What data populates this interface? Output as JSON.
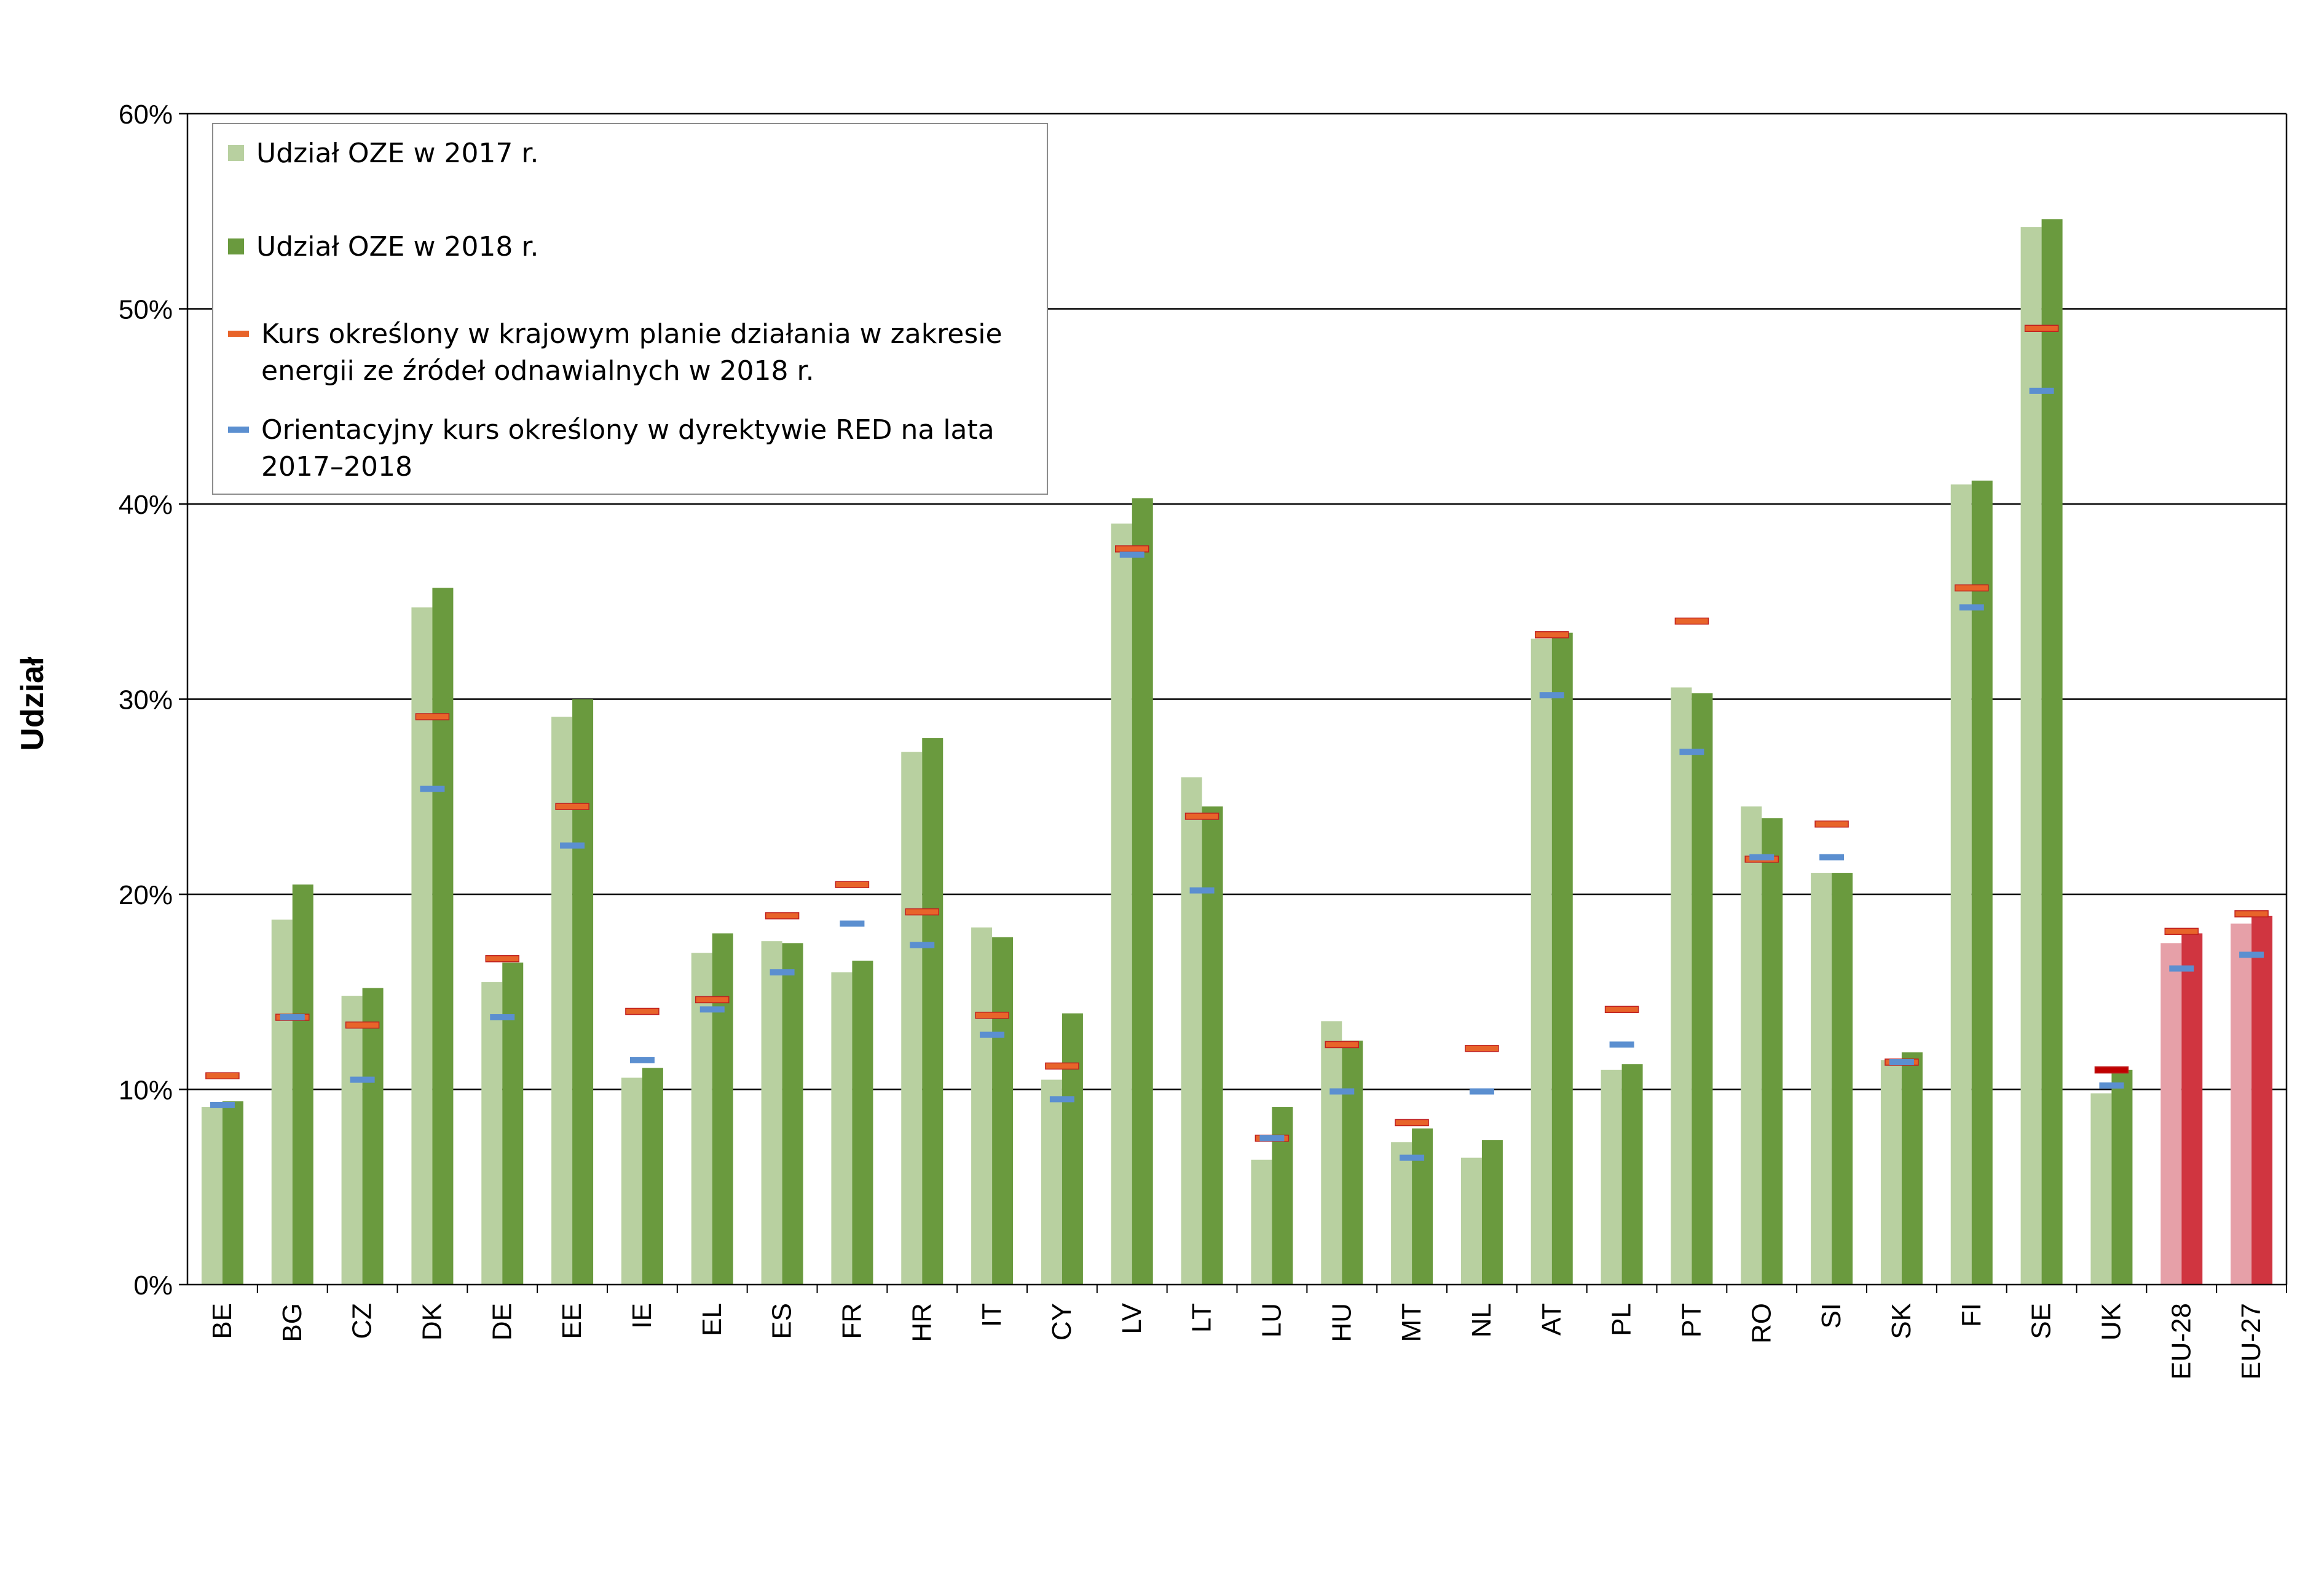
{
  "chart_data": {
    "type": "bar",
    "ylabel": "Udział",
    "ylim": [
      0,
      60
    ],
    "yticks": [
      "0%",
      "10%",
      "20%",
      "30%",
      "40%",
      "50%",
      "60%"
    ],
    "grid": true,
    "legend_position": "top-left",
    "categories": [
      "BE",
      "BG",
      "CZ",
      "DK",
      "DE",
      "EE",
      "IE",
      "EL",
      "ES",
      "FR",
      "HR",
      "IT",
      "CY",
      "LV",
      "LT",
      "LU",
      "HU",
      "MT",
      "NL",
      "AT",
      "PL",
      "PT",
      "RO",
      "SI",
      "SK",
      "FI",
      "SE",
      "UK",
      "EU-28",
      "EU-27"
    ],
    "series": [
      {
        "name": "Udział OZE w 2017 r.",
        "kind": "bar",
        "color": "#b8d0a0",
        "values": [
          9.1,
          18.7,
          14.8,
          34.7,
          15.5,
          29.1,
          10.6,
          17.0,
          17.6,
          16.0,
          27.3,
          18.3,
          10.5,
          39.0,
          26.0,
          6.4,
          13.5,
          7.3,
          6.5,
          33.1,
          11.0,
          30.6,
          24.5,
          21.1,
          11.5,
          41.0,
          54.2,
          9.8,
          17.5,
          18.5
        ],
        "highlight_color": "#e6a0a8"
      },
      {
        "name": "Udział OZE w 2018 r.",
        "kind": "bar",
        "color": "#6a9a3e",
        "values": [
          9.4,
          20.5,
          15.2,
          35.7,
          16.5,
          30.0,
          11.1,
          18.0,
          17.5,
          16.6,
          28.0,
          17.8,
          13.9,
          40.3,
          24.5,
          9.1,
          12.5,
          8.0,
          7.4,
          33.4,
          11.3,
          30.3,
          23.9,
          21.1,
          11.9,
          41.2,
          54.6,
          11.0,
          18.0,
          18.9
        ],
        "highlight_color": "#d03540"
      },
      {
        "name": "Kurs określony w krajowym planie działania w zakresie energii ze źródeł odnawialnych w 2018 r.",
        "kind": "marker",
        "color": "#e8642a",
        "values": [
          10.7,
          13.7,
          13.3,
          29.1,
          16.7,
          24.5,
          14.0,
          14.6,
          18.9,
          20.5,
          19.1,
          13.8,
          11.2,
          37.7,
          24.0,
          7.5,
          12.3,
          8.3,
          12.1,
          33.3,
          14.1,
          34.0,
          21.8,
          23.6,
          11.4,
          35.7,
          49.0,
          11.0,
          18.1,
          19.0
        ],
        "special_color": "#c00000",
        "special_index": 27
      },
      {
        "name": "Orientacyjny kurs określony w dyrektywie RED na lata 2017–2018",
        "kind": "marker",
        "color": "#5b8fd0",
        "values": [
          9.2,
          13.7,
          10.5,
          25.4,
          13.7,
          22.5,
          11.5,
          14.1,
          16.0,
          18.5,
          17.4,
          12.8,
          9.5,
          37.4,
          20.2,
          7.5,
          9.9,
          6.5,
          9.9,
          30.2,
          12.3,
          27.3,
          21.9,
          21.9,
          11.4,
          34.7,
          45.8,
          10.2,
          16.2,
          16.9
        ]
      }
    ],
    "highlight_categories": [
      "EU-28",
      "EU-27"
    ]
  }
}
